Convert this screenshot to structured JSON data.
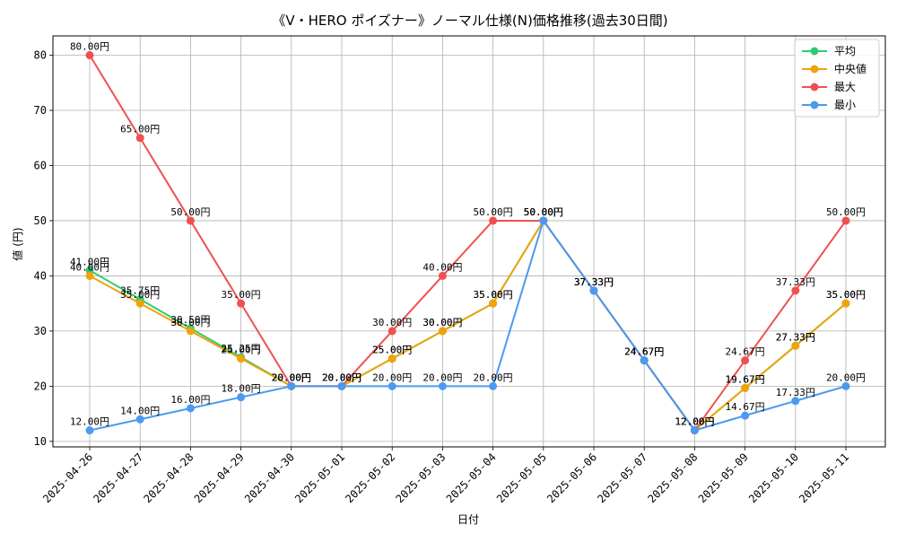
{
  "chart_data": {
    "type": "line",
    "title": "《V・HERO ポイズナー》ノーマル仕様(N)価格推移(過去30日間)",
    "xlabel": "日付",
    "ylabel": "値 (円)",
    "ylim": [
      9,
      83.5
    ],
    "yticks": [
      10,
      20,
      30,
      40,
      50,
      60,
      70,
      80
    ],
    "grid": true,
    "legend_position": "top-right",
    "label_suffix": "円",
    "categories": [
      "2025-04-26",
      "2025-04-27",
      "2025-04-28",
      "2025-04-29",
      "2025-04-30",
      "2025-05-01",
      "2025-05-02",
      "2025-05-03",
      "2025-05-04",
      "2025-05-05",
      "2025-05-06",
      "2025-05-07",
      "2025-05-08",
      "2025-05-09",
      "2025-05-10",
      "2025-05-11"
    ],
    "series": [
      {
        "name": "平均",
        "color": "#2ecc71",
        "values": [
          41.0,
          35.75,
          30.5,
          25.25,
          20.0,
          20.0,
          25.0,
          30.0,
          35.0,
          50.0,
          37.33,
          24.67,
          12.0,
          19.67,
          27.33,
          35.0
        ]
      },
      {
        "name": "中央値",
        "color": "#f0a30a",
        "values": [
          40.0,
          35.0,
          30.0,
          25.0,
          20.0,
          20.0,
          25.0,
          30.0,
          35.0,
          50.0,
          37.33,
          24.67,
          12.0,
          19.67,
          27.33,
          35.0
        ]
      },
      {
        "name": "最大",
        "color": "#f05050",
        "values": [
          80.0,
          65.0,
          50.0,
          35.0,
          20.0,
          20.0,
          30.0,
          40.0,
          50.0,
          50.0,
          37.33,
          24.67,
          12.0,
          24.67,
          37.33,
          50.0
        ]
      },
      {
        "name": "最小",
        "color": "#4a9af0",
        "values": [
          12.0,
          14.0,
          16.0,
          18.0,
          20.0,
          20.0,
          20.0,
          20.0,
          20.0,
          50.0,
          37.33,
          24.67,
          12.0,
          14.67,
          17.33,
          20.0
        ]
      }
    ]
  }
}
